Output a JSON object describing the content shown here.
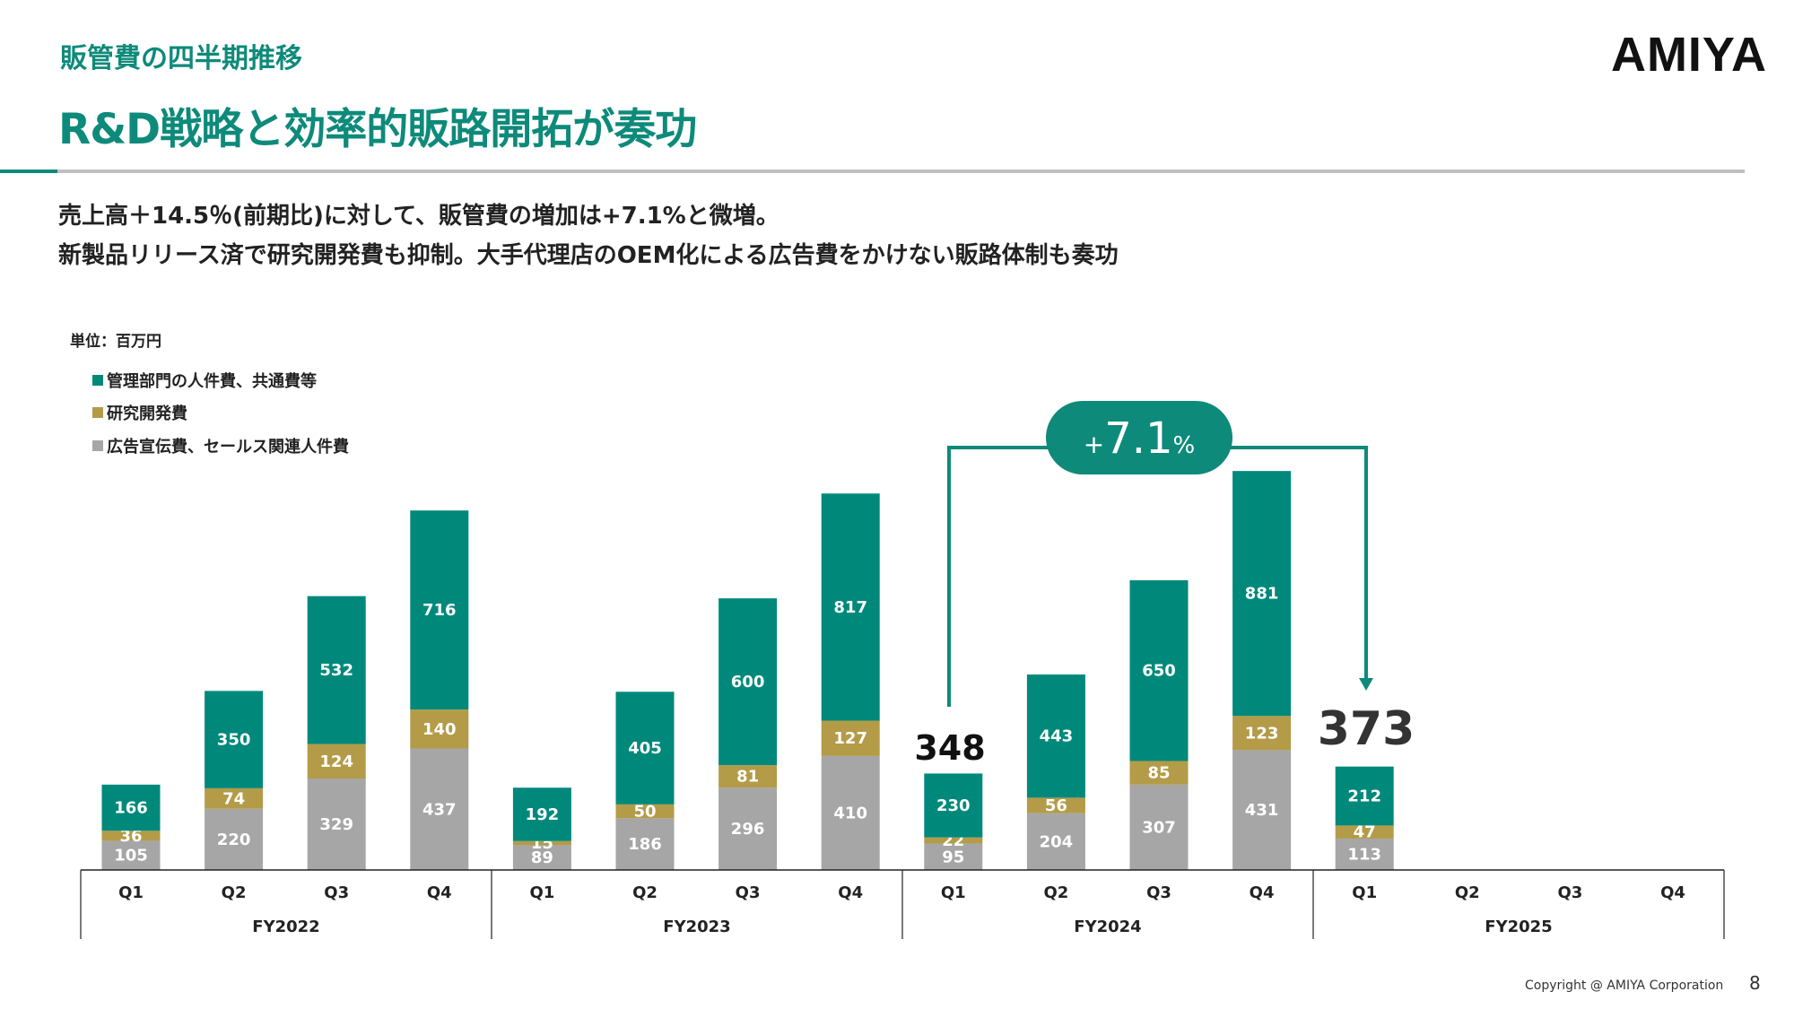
{
  "header": {
    "subtitle": "販管費の四半期推移",
    "title": "R&D戦略と効率的販路開拓が奏功",
    "logo": "AMIYA"
  },
  "lead": [
    "売上高＋14.5％(前期比)に対して、販管費の増加は+7.1%と微増。",
    "新製品リリース済で研究開発費も抑制。大手代理店のOEM化による広告費をかけない販路体制も奏功"
  ],
  "footer": {
    "copyright": "Copyright @ AMIYA Corporation",
    "page": "8"
  },
  "colors": {
    "teal": "#00897b",
    "gold": "#b39b48",
    "gray": "#a6a6a6",
    "accent": "#0e8a7a"
  },
  "chart_data": {
    "type": "bar",
    "stacked": true,
    "unit_label": "単位：百万円",
    "legend_placement": "top-left",
    "groups": [
      {
        "label": "FY2022",
        "quarters": [
          "Q1",
          "Q2",
          "Q3",
          "Q4"
        ]
      },
      {
        "label": "FY2023",
        "quarters": [
          "Q1",
          "Q2",
          "Q3",
          "Q4"
        ]
      },
      {
        "label": "FY2024",
        "quarters": [
          "Q1",
          "Q2",
          "Q3",
          "Q4"
        ]
      },
      {
        "label": "FY2025",
        "quarters": [
          "Q1",
          "Q2",
          "Q3",
          "Q4"
        ]
      }
    ],
    "series": [
      {
        "name": "広告宣伝費、セールス関連人件費",
        "color": "#a6a6a6",
        "values": [
          105,
          220,
          329,
          437,
          89,
          186,
          296,
          410,
          95,
          204,
          307,
          431,
          113,
          null,
          null,
          null
        ]
      },
      {
        "name": "研究開発費",
        "color": "#b39b48",
        "values": [
          36,
          74,
          124,
          140,
          15,
          50,
          81,
          127,
          22,
          56,
          85,
          123,
          47,
          null,
          null,
          null
        ]
      },
      {
        "name": "管理部門の人件費、共通費等",
        "color": "#00897b",
        "values": [
          166,
          350,
          532,
          716,
          192,
          405,
          600,
          817,
          230,
          443,
          650,
          881,
          212,
          null,
          null,
          null
        ]
      }
    ],
    "annotations": {
      "totals": [
        {
          "quarter": "FY2024 Q1",
          "text": "348"
        },
        {
          "quarter": "FY2025 Q1",
          "text": "373"
        }
      ],
      "change": {
        "plus": "+",
        "value": "7.1",
        "unit": "%"
      }
    }
  }
}
